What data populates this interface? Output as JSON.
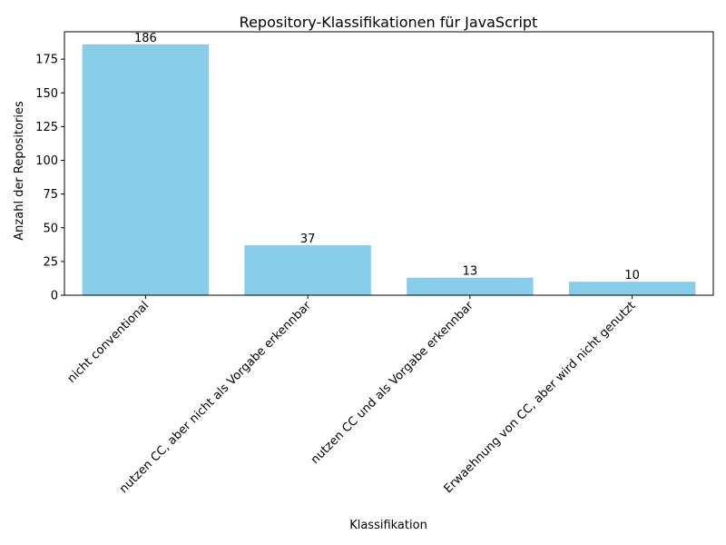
{
  "chart_data": {
    "type": "bar",
    "title": "Repository-Klassifikationen für JavaScript",
    "xlabel": "Klassifikation",
    "ylabel": "Anzahl der Repositories",
    "categories": [
      "nicht conventional",
      "nutzen CC, aber nicht als Vorgabe erkennbar",
      "nutzen CC und als Vorgabe erkennbar",
      "Erwaehnung von CC, aber wird nicht genutzt"
    ],
    "values": [
      186,
      37,
      13,
      10
    ],
    "data_labels": [
      "186",
      "37",
      "13",
      "10"
    ],
    "ylim": [
      0,
      195.3
    ],
    "yticks": [
      0,
      25,
      50,
      75,
      100,
      125,
      150,
      175
    ],
    "ytick_labels": [
      "0",
      "25",
      "50",
      "75",
      "100",
      "125",
      "150",
      "175"
    ],
    "grid": false,
    "colors": {
      "bar": "#87ceeb",
      "axis": "#000000",
      "text": "#000000"
    }
  }
}
